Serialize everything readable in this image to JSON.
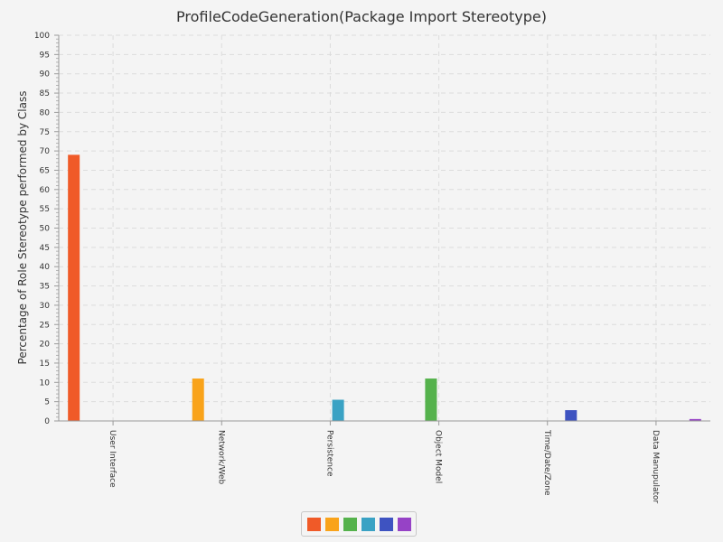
{
  "chart_data": {
    "type": "bar",
    "title": "ProfileCodeGeneration(Package Import Stereotype)",
    "xlabel": "",
    "ylabel": "Percentage of Role Stereotype performed by Class",
    "ylim": [
      0,
      100
    ],
    "ytick_step": 5,
    "grid": true,
    "legend_position": "bottom",
    "categories": [
      "User Interface",
      "Network/Web",
      "Persistence",
      "Object Model",
      "Time/Date/Zone",
      "Data Manupulator"
    ],
    "series": [
      {
        "values": [
          69,
          0,
          0,
          0,
          0,
          0
        ],
        "color": "#f05a28"
      },
      {
        "values": [
          0,
          11,
          0,
          0,
          0,
          0
        ],
        "color": "#f9a31a"
      },
      {
        "values": [
          0,
          0,
          0,
          11,
          0,
          0
        ],
        "color": "#55b24c"
      },
      {
        "values": [
          0,
          0,
          5.5,
          0,
          0,
          0
        ],
        "color": "#3aa2c4"
      },
      {
        "values": [
          0,
          0,
          0,
          0,
          2.8,
          0
        ],
        "color": "#3e53c1"
      },
      {
        "values": [
          0,
          0,
          0,
          0,
          0,
          0.5
        ],
        "color": "#9642c6"
      }
    ]
  }
}
